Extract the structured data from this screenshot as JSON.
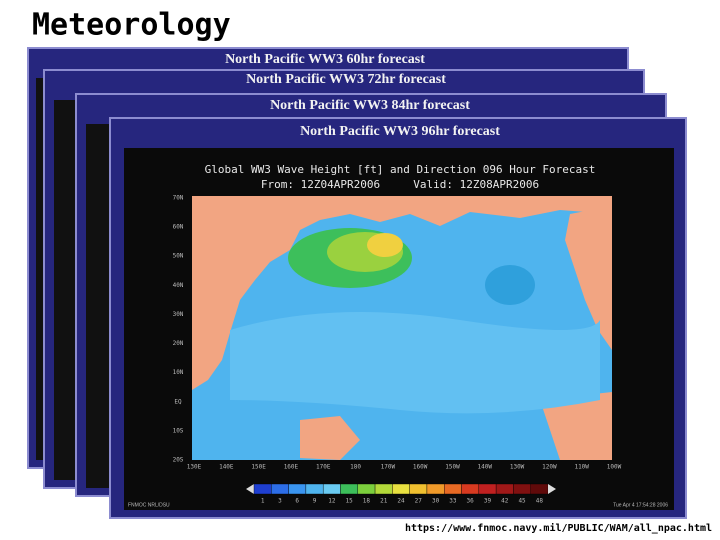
{
  "title": "Meteorology",
  "panels": [
    {
      "title": "North Pacific WW3 60hr forecast"
    },
    {
      "title": "North Pacific WW3 72hr forecast"
    },
    {
      "title": "North Pacific WW3 84hr forecast"
    },
    {
      "title": "North Pacific WW3 96hr forecast"
    }
  ],
  "map": {
    "header": "Global WW3 Wave Height [ft] and Direction 096 Hour Forecast",
    "subheader": "From: 12Z04APR2006     Valid: 12Z08APR2006",
    "lat_labels": [
      "70N",
      "60N",
      "50N",
      "40N",
      "30N",
      "20N",
      "10N",
      "EQ",
      "10S",
      "20S"
    ],
    "lon_labels": [
      "130E",
      "140E",
      "150E",
      "160E",
      "170E",
      "180",
      "170W",
      "160W",
      "150W",
      "140W",
      "130W",
      "120W",
      "110W",
      "100W"
    ],
    "scale_labels": [
      "1",
      "3",
      "6",
      "9",
      "12",
      "15",
      "18",
      "21",
      "24",
      "27",
      "30",
      "33",
      "36",
      "39",
      "42",
      "45",
      "48"
    ],
    "footer_left": "FNMOC NRL/DSU",
    "footer_right": "Tue Apr 4 17:54:28 2006"
  },
  "source_url": "https://www.fnmoc.navy.mil/PUBLIC/WAM/all_npac.html"
}
